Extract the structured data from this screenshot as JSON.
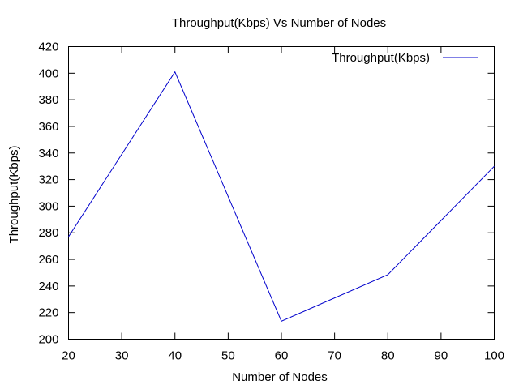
{
  "chart_data": {
    "type": "line",
    "title": "Throughput(Kbps) Vs Number of Nodes",
    "xlabel": "Number of Nodes",
    "ylabel": "Throughput(Kbps)",
    "xlim": [
      20,
      100
    ],
    "ylim": [
      200,
      420
    ],
    "xticks": [
      20,
      30,
      40,
      50,
      60,
      70,
      80,
      90,
      100
    ],
    "yticks": [
      200,
      220,
      240,
      260,
      280,
      300,
      320,
      340,
      360,
      380,
      400,
      420
    ],
    "grid": false,
    "legend_position": "top-right",
    "series": [
      {
        "name": "Throughput(Kbps)",
        "color": "#0000cc",
        "x": [
          20,
          40,
          60,
          80,
          100
        ],
        "y": [
          277,
          401,
          213.5,
          248.5,
          330
        ]
      }
    ]
  }
}
